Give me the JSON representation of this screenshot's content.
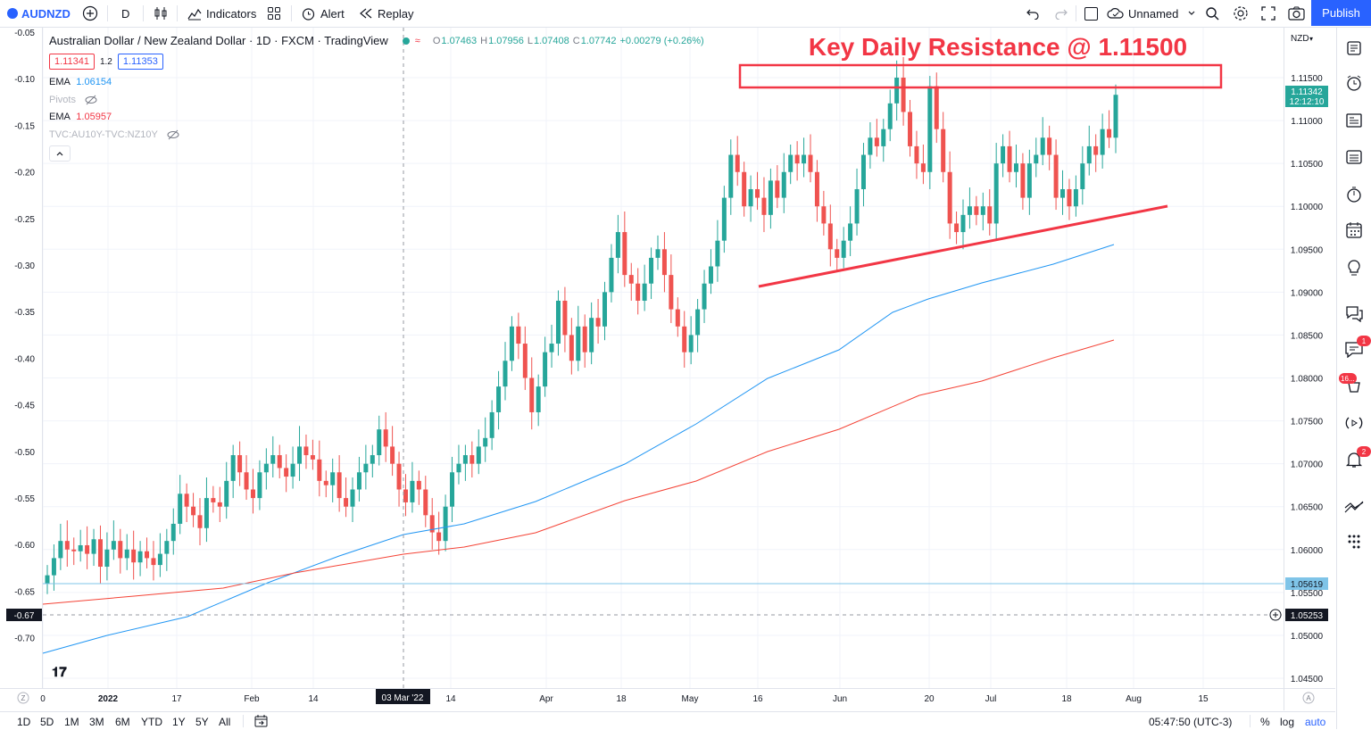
{
  "toolbar": {
    "symbol": "AUDNZD",
    "interval": "D",
    "indicators": "Indicators",
    "alert": "Alert",
    "replay": "Replay",
    "layout_name": "Unnamed",
    "publish": "Publish"
  },
  "legend": {
    "title": "Australian Dollar / New Zealand Dollar · 1D · FXCM · TradingView",
    "o_label": "O",
    "o": "1.07463",
    "h_label": "H",
    "h": "1.07956",
    "l_label": "L",
    "l": "1.07408",
    "c_label": "C",
    "c": "1.07742",
    "change": "+0.00279 (+0.26%)",
    "bid": "1.11341",
    "spread": "1.2",
    "ask": "1.11353",
    "ema1_label": "EMA",
    "ema1_value": "1.06154",
    "pivots_label": "Pivots",
    "ema2_label": "EMA",
    "ema2_value": "1.05957",
    "tvc_label": "TVC:AU10Y-TVC:NZ10Y"
  },
  "annotation": {
    "text": "Key Daily Resistance @ 1.11500",
    "color": "#f23645"
  },
  "left_axis": {
    "ticks": [
      "-0.05",
      "-0.10",
      "-0.15",
      "-0.20",
      "-0.25",
      "-0.30",
      "-0.35",
      "-0.40",
      "-0.45",
      "-0.50",
      "-0.55",
      "-0.60",
      "-0.65",
      "-0.70"
    ],
    "crosshair_value": "-0.67"
  },
  "right_axis": {
    "currency": "NZD",
    "ticks": [
      "1.11500",
      "1.11000",
      "1.10500",
      "1.10000",
      "1.09500",
      "1.09000",
      "1.08500",
      "1.08000",
      "1.07500",
      "1.07000",
      "1.06500",
      "1.06000",
      "1.05500",
      "1.05000",
      "1.04500"
    ],
    "last_price": "1.11342",
    "countdown": "12:12:10",
    "ema_price": "1.05619",
    "crosshair_price": "1.05253"
  },
  "time_axis": {
    "labels": [
      "0",
      "2022",
      "17",
      "Feb",
      "14",
      "14",
      "Apr",
      "18",
      "May",
      "16",
      "Jun",
      "20",
      "Jul",
      "18",
      "Aug",
      "15"
    ],
    "crosshair_date": "03 Mar '22"
  },
  "bottom_bar": {
    "ranges": [
      "1D",
      "5D",
      "1M",
      "3M",
      "6M",
      "YTD",
      "1Y",
      "5Y",
      "All"
    ],
    "clock": "05:47:50 (UTC-3)",
    "percent": "%",
    "log": "log",
    "auto": "auto"
  },
  "right_sidebar": {
    "badges": [
      "1",
      "16...",
      "2"
    ]
  },
  "colors": {
    "up": "#26a69a",
    "down": "#ef5350",
    "ema_blue": "#2196f3",
    "ema_red": "#f44336",
    "accent": "#2962ff"
  }
}
